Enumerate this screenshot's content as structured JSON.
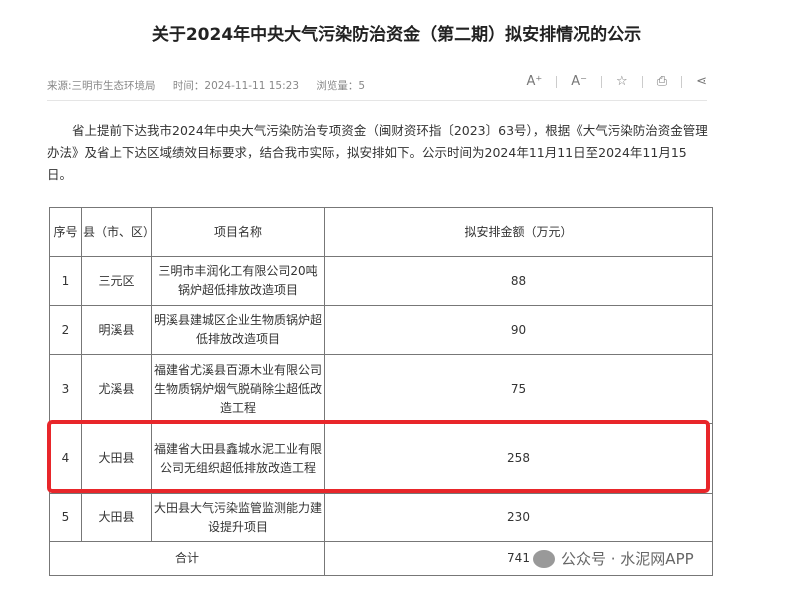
{
  "title": "关于2024年中央大气污染防治资金（第二期）拟安排情况的公示",
  "meta": {
    "source": "来源:三明市生态环境局",
    "time": "时间：2024-11-11 15:23",
    "views": "浏览量：5"
  },
  "tools": {
    "font_up": "A⁺",
    "font_down": "A⁻",
    "star": "☆",
    "print": "⎙",
    "share": "⋖"
  },
  "paragraph": "省上提前下达我市2024年中央大气污染防治专项资金（闽财资环指〔2023〕63号），根据《大气污染防治资金管理办法》及省上下达区域绩效目标要求，结合我市实际，拟安排如下。公示时间为2024年11月11日至2024年11月15日。",
  "table": {
    "headers": [
      "序号",
      "县（市、区）",
      "项目名称",
      "拟安排金额（万元）"
    ],
    "rows": [
      {
        "no": "1",
        "county": "三元区",
        "project": "三明市丰润化工有限公司20吨锅炉超低排放改造项目",
        "amount": "88"
      },
      {
        "no": "2",
        "county": "明溪县",
        "project": "明溪县建城区企业生物质锅炉超低排放改造项目",
        "amount": "90"
      },
      {
        "no": "3",
        "county": "尤溪县",
        "project": "福建省尤溪县百源木业有限公司生物质锅炉烟气脱硝除尘超低改造工程",
        "amount": "75"
      },
      {
        "no": "4",
        "county": "大田县",
        "project": "福建省大田县鑫城水泥工业有限公司无组织超低排放改造工程",
        "amount": "258"
      },
      {
        "no": "5",
        "county": "大田县",
        "project": "大田县大气污染监管监测能力建设提升项目",
        "amount": "230"
      }
    ],
    "total_label": "合计",
    "total": "741"
  },
  "watermark": "公众号 · 水泥网APP",
  "highlight_color": "#e8262a"
}
